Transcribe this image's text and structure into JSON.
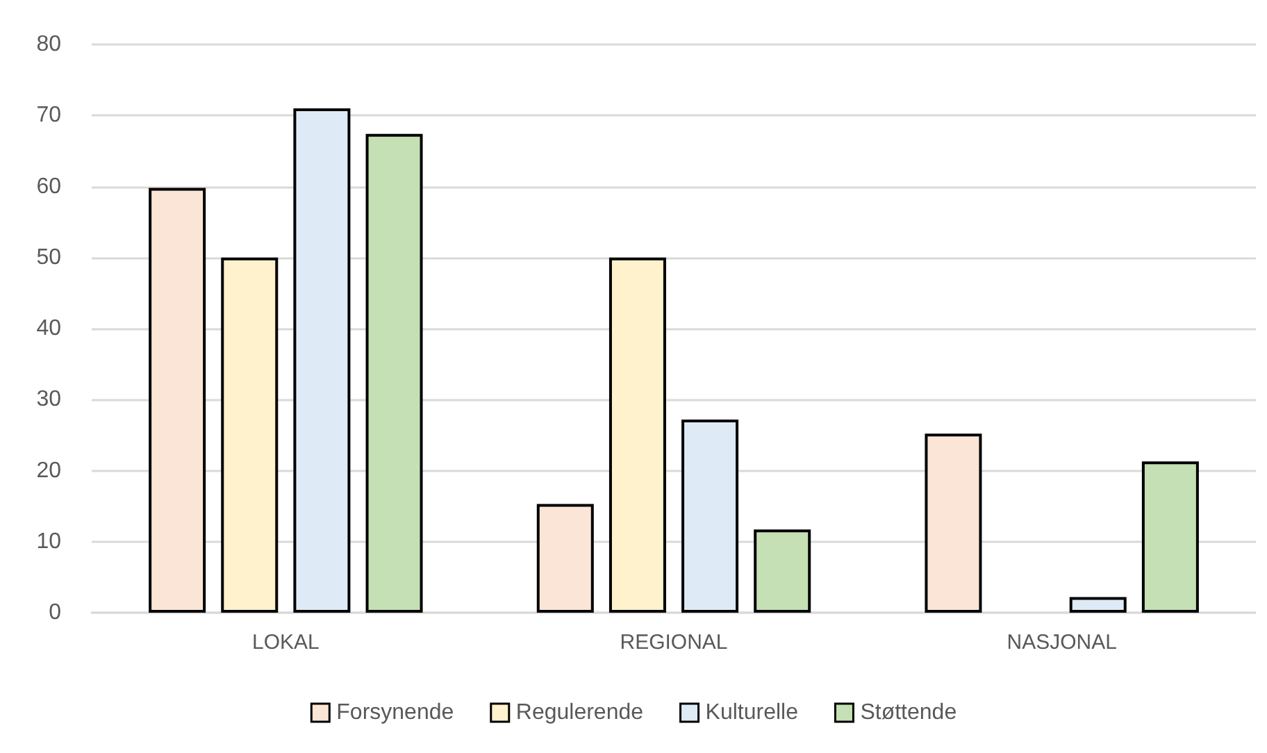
{
  "chart_data": {
    "type": "bar",
    "categories": [
      "LOKAL",
      "REGIONAL",
      "NASJONAL"
    ],
    "series": [
      {
        "name": "Forsynende",
        "color": "#fbe5d6",
        "values": [
          59.8,
          15.3,
          25.2
        ]
      },
      {
        "name": "Regulerende",
        "color": "#fff2cc",
        "values": [
          50,
          50,
          null
        ]
      },
      {
        "name": "Kulturelle",
        "color": "#deebf7",
        "values": [
          71,
          27.2,
          2.2
        ]
      },
      {
        "name": "Støttende",
        "color": "#c5e0b4",
        "values": [
          67.4,
          11.7,
          21.3
        ]
      }
    ],
    "ylim": [
      0,
      80
    ],
    "yticks": [
      0,
      10,
      20,
      30,
      40,
      50,
      60,
      70,
      80
    ],
    "grid": "y",
    "legend": "bottom"
  }
}
